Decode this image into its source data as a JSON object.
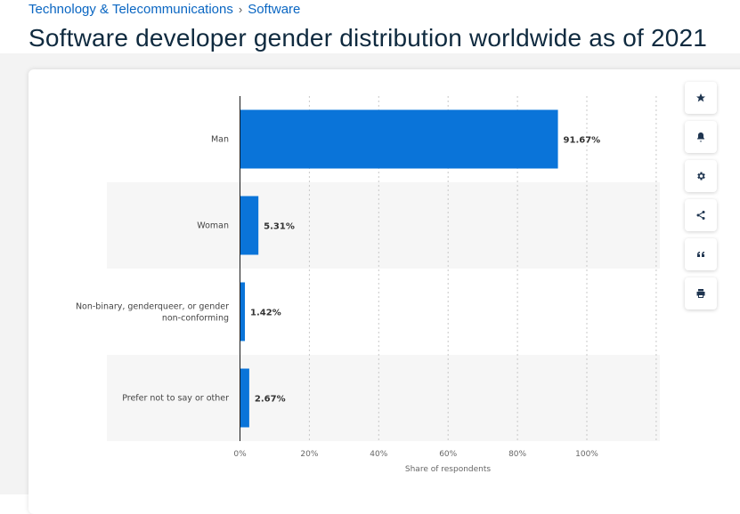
{
  "breadcrumb": {
    "items": [
      "Technology & Telecommunications",
      "Software"
    ],
    "separator": "›"
  },
  "page_title": "Software developer gender distribution worldwide as of 2021",
  "toolbar": {
    "buttons": [
      {
        "icon": "star-icon"
      },
      {
        "icon": "bell-icon"
      },
      {
        "icon": "gear-icon"
      },
      {
        "icon": "share-icon"
      },
      {
        "icon": "quote-icon"
      },
      {
        "icon": "print-icon"
      }
    ]
  },
  "colors": {
    "bar": "#0a74d9",
    "title": "#0f2a3f",
    "link": "#0a66c2"
  },
  "chart_data": {
    "type": "bar",
    "orientation": "horizontal",
    "categories": [
      "Man",
      "Woman",
      "Non-binary, genderqueer, or gender non-conforming",
      "Prefer not to say or other"
    ],
    "values": [
      91.67,
      5.31,
      1.42,
      2.67
    ],
    "data_labels": [
      "91.67%",
      "5.31%",
      "1.42%",
      "2.67%"
    ],
    "xlabel": "Share of respondents",
    "ylabel": "",
    "xlim": [
      0,
      120
    ],
    "x_ticks": [
      0,
      20,
      40,
      60,
      80,
      100
    ],
    "x_tick_labels": [
      "0%",
      "20%",
      "40%",
      "60%",
      "80%",
      "100%"
    ],
    "grid": true
  }
}
